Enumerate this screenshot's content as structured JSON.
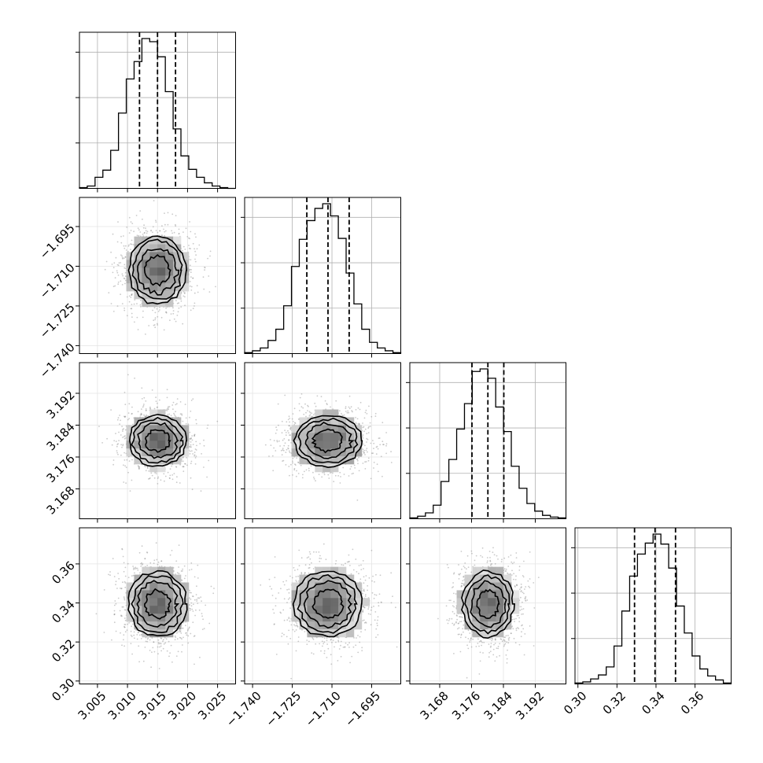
{
  "chart_data": {
    "type": "corner",
    "parameters": [
      {
        "range": [
          3.002,
          3.028
        ],
        "ticks": [
          3.005,
          3.01,
          3.015,
          3.02,
          3.025
        ],
        "tick_labels": [
          "3.005",
          "3.010",
          "3.015",
          "3.020",
          "3.025"
        ],
        "quantiles": [
          3.012,
          3.015,
          3.018
        ],
        "hist_bins": [
          3.002,
          3.028,
          20
        ],
        "hist_counts": [
          1,
          3,
          14,
          23,
          48,
          95,
          138,
          160,
          189,
          185,
          166,
          122,
          75,
          41,
          24,
          14,
          7,
          3,
          1,
          0
        ]
      },
      {
        "range": [
          -1.743,
          -1.684
        ],
        "ticks": [
          -1.74,
          -1.725,
          -1.71,
          -1.695
        ],
        "tick_labels": [
          "−1.740",
          "−1.725",
          "−1.710",
          "−1.695"
        ],
        "quantiles": [
          -1.7195,
          -1.7115,
          -1.7035
        ],
        "hist_bins": [
          -1.743,
          -1.684,
          20
        ],
        "hist_counts": [
          1,
          3,
          6,
          14,
          26,
          51,
          93,
          122,
          142,
          155,
          160,
          147,
          123,
          86,
          53,
          26,
          12,
          6,
          3,
          1
        ]
      },
      {
        "range": [
          3.1605,
          3.1997
        ],
        "ticks": [
          3.168,
          3.176,
          3.184,
          3.192
        ],
        "tick_labels": [
          "3.168",
          "3.176",
          "3.184",
          "3.192"
        ],
        "quantiles": [
          3.1761,
          3.1801,
          3.1841
        ],
        "hist_bins": [
          3.1605,
          3.1997,
          20
        ],
        "hist_counts": [
          1,
          3,
          7,
          16,
          44,
          70,
          106,
          136,
          174,
          177,
          166,
          132,
          103,
          62,
          36,
          18,
          9,
          4,
          2,
          1
        ]
      },
      {
        "range": [
          0.2985,
          0.3785
        ],
        "ticks": [
          0.3,
          0.32,
          0.34,
          0.36
        ],
        "tick_labels": [
          "0.30",
          "0.32",
          "0.34",
          "0.36"
        ],
        "quantiles": [
          0.329,
          0.3395,
          0.35
        ],
        "hist_bins": [
          0.2985,
          0.3785,
          20
        ],
        "hist_counts": [
          1,
          2,
          5,
          9,
          17,
          38,
          73,
          108,
          130,
          141,
          150,
          140,
          116,
          78,
          51,
          28,
          15,
          8,
          4,
          1
        ]
      }
    ],
    "grid": true,
    "legend": false
  }
}
